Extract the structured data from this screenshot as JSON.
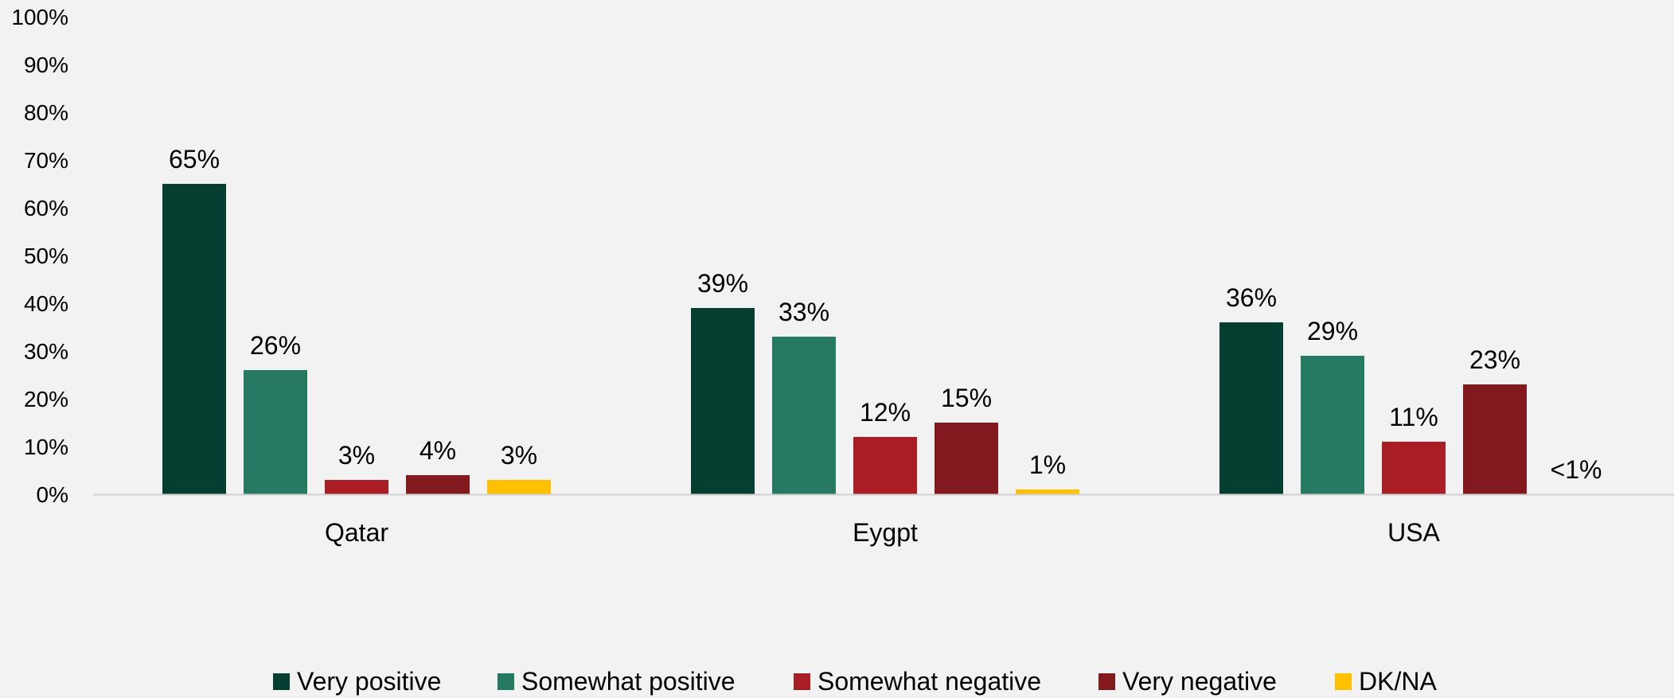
{
  "chart_data": {
    "type": "bar",
    "title": "",
    "xlabel": "",
    "ylabel": "",
    "ylim": [
      0,
      100
    ],
    "y_ticks": [
      "0%",
      "10%",
      "20%",
      "30%",
      "40%",
      "50%",
      "60%",
      "70%",
      "80%",
      "90%",
      "100%"
    ],
    "categories": [
      "Qatar",
      "Eygpt",
      "USA"
    ],
    "series": [
      {
        "name": "Very positive",
        "color": "#063f31",
        "values": [
          65,
          39,
          36
        ],
        "labels": [
          "65%",
          "39%",
          "36%"
        ]
      },
      {
        "name": "Somewhat positive",
        "color": "#267a63",
        "values": [
          26,
          33,
          29
        ],
        "labels": [
          "26%",
          "33%",
          "29%"
        ]
      },
      {
        "name": "Somewhat negative",
        "color": "#a81e24",
        "values": [
          3,
          12,
          11
        ],
        "labels": [
          "3%",
          "12%",
          "11%"
        ]
      },
      {
        "name": "Very negative",
        "color": "#82191e",
        "values": [
          4,
          15,
          23
        ],
        "labels": [
          "4%",
          "15%",
          "23%"
        ]
      },
      {
        "name": "DK/NA",
        "color": "#ffc000",
        "values": [
          3,
          1,
          0
        ],
        "labels": [
          "3%",
          "1%",
          "<1%"
        ]
      }
    ],
    "grid": false,
    "legend_position": "bottom",
    "axis_color": "#d0d0d0"
  }
}
